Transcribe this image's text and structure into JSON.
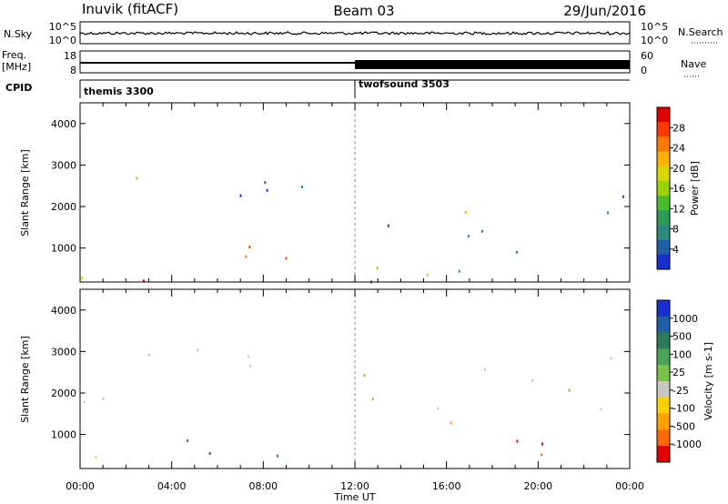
{
  "header": {
    "station": "Inuvik (fitACF)",
    "beam": "Beam 03",
    "date": "29/Jun/2016"
  },
  "strip": {
    "nsky_label": "N.Sky",
    "nsearch_label": "N.Search",
    "nsky_ticks": [
      "10^5",
      "10^0"
    ],
    "nsearch_ticks": [
      "10^5",
      "10^0"
    ],
    "freq_label_1": "Freq.",
    "freq_label_2": "[MHz]",
    "freq_ticks": [
      "18",
      "8"
    ],
    "nave_ticks": [
      "60",
      "0"
    ],
    "nave_label": "Nave",
    "cpid_label": "CPID",
    "cpid_segments": [
      {
        "name": "themis 3300",
        "start_hour": 0,
        "end_hour": 12
      },
      {
        "name": "twofsound 3503",
        "start_hour": 12,
        "end_hour": 24
      }
    ]
  },
  "power_scale": {
    "label": "Power [dB]",
    "ticks": [
      "28",
      "24",
      "20",
      "16",
      "12",
      "8",
      "4"
    ],
    "colors": [
      "#e00000",
      "#ff3a00",
      "#ff7a00",
      "#ffb000",
      "#d8d800",
      "#9ad400",
      "#4cbb2a",
      "#2e9a5a",
      "#2c8a7c",
      "#1f5fa8",
      "#1a2fd0"
    ]
  },
  "velocity_scale": {
    "label": "Velocity [m s-1]",
    "ticks": [
      "1000",
      "500",
      "100",
      "25",
      "-25",
      "-100",
      "-500",
      "-1000"
    ],
    "colors": [
      "#1a2fd0",
      "#1f5fa8",
      "#2e7a5e",
      "#4aa55a",
      "#7ac24a",
      "#c8c8c0",
      "#ffd000",
      "#ffa000",
      "#ff6a00",
      "#e00000"
    ]
  },
  "chart_data": [
    {
      "type": "heatmap",
      "title": "",
      "quantity": "Power [dB]",
      "ylabel": "Slant Range [km]",
      "xlabel": "",
      "x_range_hours": [
        0,
        24
      ],
      "ylim": [
        180,
        4500
      ],
      "y_ticks": [
        1000,
        2000,
        3000,
        4000
      ],
      "x_ticks": [
        "00:00",
        "04:00",
        "08:00",
        "12:00",
        "16:00",
        "20:00",
        "00:00"
      ],
      "scatter_regions": [
        {
          "t0": 0.0,
          "t1": 10.5,
          "r0": 180,
          "r1": 1400,
          "level": "high"
        },
        {
          "t0": 1.3,
          "t1": 9.8,
          "r0": 1600,
          "r1": 3000,
          "level": "medium"
        },
        {
          "t0": 0.0,
          "t1": 1.2,
          "r0": 1700,
          "r1": 2200,
          "level": "medium"
        },
        {
          "t0": 12.0,
          "t1": 23.9,
          "r0": 1400,
          "r1": 2500,
          "level": "medium"
        },
        {
          "t0": 12.0,
          "t1": 23.9,
          "r0": 180,
          "r1": 1500,
          "level": "medium"
        },
        {
          "t0": 16.5,
          "t1": 19.5,
          "r0": 180,
          "r1": 450,
          "level": "high"
        }
      ]
    },
    {
      "type": "heatmap",
      "title": "",
      "quantity": "Velocity [m s-1]",
      "ylabel": "Slant Range [km]",
      "xlabel": "Time UT",
      "x_range_hours": [
        0,
        24
      ],
      "ylim": [
        180,
        4500
      ],
      "y_ticks": [
        1000,
        2000,
        3000,
        4000
      ],
      "x_ticks": [
        "00:00",
        "04:00",
        "08:00",
        "12:00",
        "16:00",
        "20:00",
        "00:00"
      ],
      "scatter_regions": [
        {
          "t0": 0.0,
          "t1": 10.5,
          "r0": 1600,
          "r1": 3200,
          "level": "ground"
        },
        {
          "t0": 0.0,
          "t1": 3.0,
          "r0": 200,
          "r1": 800,
          "level": "negative"
        },
        {
          "t0": 2.0,
          "t1": 10.5,
          "r0": 500,
          "r1": 1500,
          "level": "positive"
        },
        {
          "t0": 12.0,
          "t1": 23.9,
          "r0": 1500,
          "r1": 3200,
          "level": "ground"
        },
        {
          "t0": 12.0,
          "t1": 17.5,
          "r0": 700,
          "r1": 1400,
          "level": "negative"
        },
        {
          "t0": 17.0,
          "t1": 23.5,
          "r0": 400,
          "r1": 1400,
          "level": "negative"
        }
      ]
    }
  ]
}
